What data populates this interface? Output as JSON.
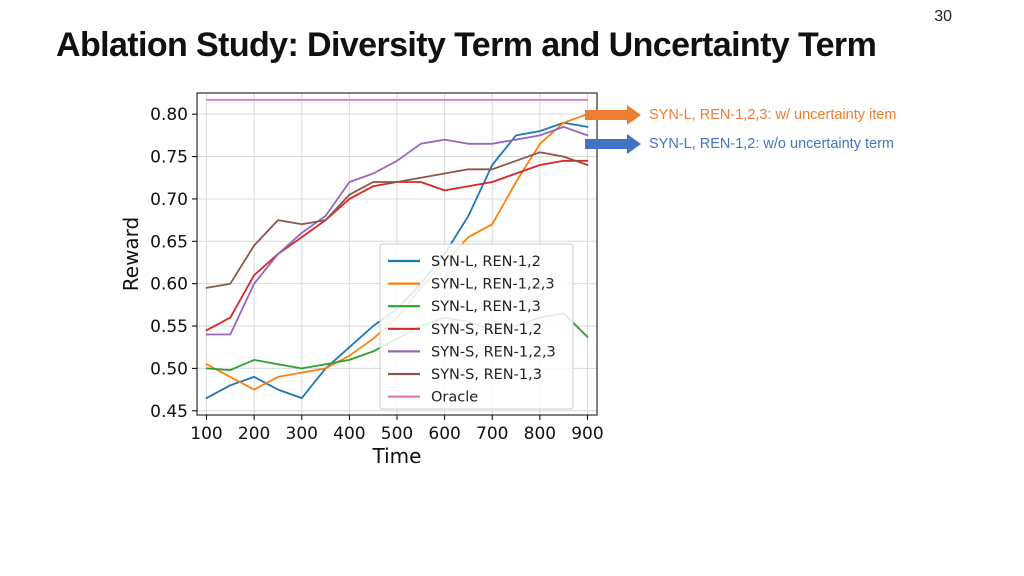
{
  "slide": {
    "page_number": "30",
    "title": "Ablation Study: Diversity Term and Uncertainty Term"
  },
  "annotations": [
    {
      "text": "SYN-L, REN-1,2,3: w/ uncertainty item",
      "color": "#ed7d31"
    },
    {
      "text": "SYN-L, REN-1,2: w/o uncertainty term",
      "color": "#4472c4"
    }
  ],
  "chart_data": {
    "type": "line",
    "title": "",
    "xlabel": "Time",
    "ylabel": "Reward",
    "xlim": [
      80,
      920
    ],
    "ylim": [
      0.445,
      0.825
    ],
    "xticks": [
      100,
      200,
      300,
      400,
      500,
      600,
      700,
      800,
      900
    ],
    "yticks": [
      0.45,
      0.5,
      0.55,
      0.6,
      0.65,
      0.7,
      0.75,
      0.8
    ],
    "grid": true,
    "legend_position": "bottom-right",
    "x": [
      100,
      150,
      200,
      250,
      300,
      350,
      400,
      450,
      500,
      550,
      600,
      650,
      700,
      750,
      800,
      850,
      900
    ],
    "series": [
      {
        "name": "SYN-L, REN-1,2",
        "color": "#1f77b4",
        "values": [
          0.465,
          0.48,
          0.49,
          0.475,
          0.465,
          0.5,
          0.525,
          0.55,
          0.57,
          0.6,
          0.635,
          0.68,
          0.74,
          0.775,
          0.78,
          0.79,
          0.785
        ]
      },
      {
        "name": "SYN-L, REN-1,2,3",
        "color": "#ff7f0e",
        "values": [
          0.505,
          0.49,
          0.475,
          0.49,
          0.495,
          0.5,
          0.515,
          0.535,
          0.56,
          0.595,
          0.625,
          0.655,
          0.67,
          0.72,
          0.765,
          0.79,
          0.8
        ]
      },
      {
        "name": "SYN-L, REN-1,3",
        "color": "#2ca02c",
        "values": [
          0.5,
          0.498,
          0.51,
          0.505,
          0.5,
          0.505,
          0.51,
          0.52,
          0.535,
          0.55,
          0.56,
          0.555,
          0.545,
          0.55,
          0.56,
          0.565,
          0.537
        ]
      },
      {
        "name": "SYN-S, REN-1,2",
        "color": "#d62728",
        "values": [
          0.545,
          0.56,
          0.61,
          0.635,
          0.655,
          0.675,
          0.7,
          0.715,
          0.72,
          0.72,
          0.71,
          0.715,
          0.72,
          0.73,
          0.74,
          0.745,
          0.745
        ]
      },
      {
        "name": "SYN-S, REN-1,2,3",
        "color": "#9467bd",
        "values": [
          0.54,
          0.54,
          0.6,
          0.635,
          0.66,
          0.68,
          0.72,
          0.73,
          0.745,
          0.765,
          0.77,
          0.765,
          0.765,
          0.77,
          0.775,
          0.785,
          0.775
        ]
      },
      {
        "name": "SYN-S, REN-1,3",
        "color": "#8c564b",
        "values": [
          0.595,
          0.6,
          0.645,
          0.675,
          0.67,
          0.675,
          0.705,
          0.72,
          0.72,
          0.725,
          0.73,
          0.735,
          0.735,
          0.745,
          0.755,
          0.75,
          0.74
        ]
      },
      {
        "name": "Oracle",
        "color": "#e377c2",
        "values": [
          0.817,
          0.817,
          0.817,
          0.817,
          0.817,
          0.817,
          0.817,
          0.817,
          0.817,
          0.817,
          0.817,
          0.817,
          0.817,
          0.817,
          0.817,
          0.817,
          0.817
        ]
      }
    ]
  }
}
